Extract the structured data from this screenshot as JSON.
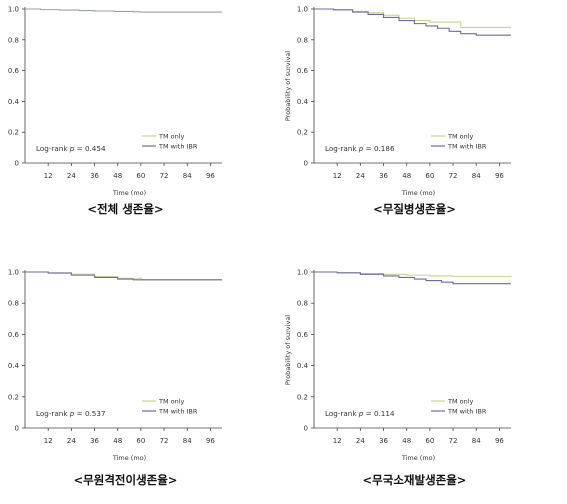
{
  "colors": {
    "tm_only": "#c8d48a",
    "tm_with_ibr": "#6a6aa8",
    "single": "#9aa2a0",
    "axis": "#444444",
    "text": "#333333"
  },
  "chart_data": [
    {
      "type": "line",
      "caption": "<전체 생존율>",
      "xlabel": "Time (mo)",
      "ylabel": "",
      "x_ticks": [
        12,
        24,
        36,
        48,
        60,
        72,
        84,
        96
      ],
      "y_ticks": [
        "0",
        "0.2",
        "0.4",
        "0.6",
        "0.8",
        "1.0"
      ],
      "xlim": [
        0,
        102
      ],
      "ylim": [
        0,
        1.0
      ],
      "logrank_prefix": "Log-rank ",
      "logrank_p_symbol": "p",
      "logrank_value": " = 0.454",
      "legend": [
        "TM only",
        "TM with IBR"
      ],
      "legend_position": "bottom-right",
      "series": [
        {
          "color_key": "single",
          "points": [
            [
              0,
              1.0
            ],
            [
              8,
              0.996
            ],
            [
              18,
              0.993
            ],
            [
              28,
              0.99
            ],
            [
              36,
              0.987
            ],
            [
              46,
              0.984
            ],
            [
              56,
              0.982
            ],
            [
              60,
              0.98
            ],
            [
              102,
              0.98
            ]
          ]
        }
      ]
    },
    {
      "type": "line",
      "caption": "<무질병생존율>",
      "xlabel": "Time (mo)",
      "ylabel": "Probability of survival",
      "x_ticks": [
        12,
        24,
        36,
        48,
        60,
        72,
        84,
        96
      ],
      "y_ticks": [
        "0",
        "0.2",
        "0.4",
        "0.6",
        "0.8",
        "1.0"
      ],
      "xlim": [
        0,
        102
      ],
      "ylim": [
        0,
        1.0
      ],
      "logrank_prefix": "Log-rank ",
      "logrank_p_symbol": "p",
      "logrank_value": " = 0.186",
      "legend": [
        "TM only",
        "TM with IBR"
      ],
      "legend_position": "bottom-right",
      "series": [
        {
          "name": "TM only",
          "color_key": "tm_only",
          "points": [
            [
              0,
              1.0
            ],
            [
              10,
              0.995
            ],
            [
              20,
              0.985
            ],
            [
              28,
              0.975
            ],
            [
              36,
              0.96
            ],
            [
              44,
              0.94
            ],
            [
              52,
              0.925
            ],
            [
              60,
              0.915
            ],
            [
              72,
              0.915
            ],
            [
              76,
              0.88
            ],
            [
              102,
              0.88
            ]
          ]
        },
        {
          "name": "TM with IBR",
          "color_key": "tm_with_ibr",
          "points": [
            [
              0,
              1.0
            ],
            [
              10,
              0.995
            ],
            [
              20,
              0.98
            ],
            [
              28,
              0.965
            ],
            [
              36,
              0.945
            ],
            [
              44,
              0.925
            ],
            [
              52,
              0.905
            ],
            [
              58,
              0.89
            ],
            [
              64,
              0.875
            ],
            [
              70,
              0.855
            ],
            [
              76,
              0.84
            ],
            [
              84,
              0.83
            ],
            [
              102,
              0.83
            ]
          ]
        }
      ]
    },
    {
      "type": "line",
      "caption": "<무원격전이생존율>",
      "xlabel": "Time (mo)",
      "ylabel": "",
      "x_ticks": [
        12,
        24,
        36,
        48,
        60,
        72,
        84,
        96
      ],
      "y_ticks": [
        "0",
        "0.2",
        "0.4",
        "0.6",
        "0.8",
        "1.0"
      ],
      "xlim": [
        0,
        102
      ],
      "ylim": [
        0,
        1.0
      ],
      "logrank_prefix": "Log-rank ",
      "logrank_p_symbol": "p",
      "logrank_value": " = 0.537",
      "legend": [
        "TM only",
        "TM with IBR"
      ],
      "legend_position": "bottom-right",
      "series": [
        {
          "name": "TM only",
          "color_key": "tm_only",
          "points": [
            [
              0,
              1.0
            ],
            [
              12,
              0.995
            ],
            [
              24,
              0.985
            ],
            [
              36,
              0.97
            ],
            [
              48,
              0.96
            ],
            [
              60,
              0.95
            ],
            [
              102,
              0.95
            ]
          ]
        },
        {
          "name": "TM with IBR",
          "color_key": "tm_with_ibr",
          "points": [
            [
              0,
              1.0
            ],
            [
              12,
              0.993
            ],
            [
              24,
              0.98
            ],
            [
              36,
              0.965
            ],
            [
              48,
              0.955
            ],
            [
              56,
              0.95
            ],
            [
              102,
              0.95
            ]
          ]
        }
      ]
    },
    {
      "type": "line",
      "caption": "<무국소재발생존율>",
      "xlabel": "Time (mo)",
      "ylabel": "Probability of survival",
      "x_ticks": [
        12,
        24,
        36,
        48,
        60,
        72,
        84,
        96
      ],
      "y_ticks": [
        "0",
        "0.2",
        "0.4",
        "0.6",
        "0.8",
        "1.0"
      ],
      "xlim": [
        0,
        102
      ],
      "ylim": [
        0,
        1.0
      ],
      "logrank_prefix": "Log-rank ",
      "logrank_p_symbol": "p",
      "logrank_value": " = 0.114",
      "legend": [
        "TM only",
        "TM with IBR"
      ],
      "legend_position": "bottom-right",
      "series": [
        {
          "name": "TM only",
          "color_key": "tm_only",
          "points": [
            [
              0,
              1.0
            ],
            [
              12,
              0.995
            ],
            [
              24,
              0.99
            ],
            [
              36,
              0.985
            ],
            [
              48,
              0.98
            ],
            [
              60,
              0.975
            ],
            [
              72,
              0.972
            ],
            [
              102,
              0.97
            ]
          ]
        },
        {
          "name": "TM with IBR",
          "color_key": "tm_with_ibr",
          "points": [
            [
              0,
              1.0
            ],
            [
              12,
              0.995
            ],
            [
              24,
              0.985
            ],
            [
              36,
              0.975
            ],
            [
              44,
              0.965
            ],
            [
              52,
              0.955
            ],
            [
              58,
              0.945
            ],
            [
              66,
              0.935
            ],
            [
              72,
              0.925
            ],
            [
              102,
              0.925
            ]
          ]
        }
      ]
    }
  ]
}
